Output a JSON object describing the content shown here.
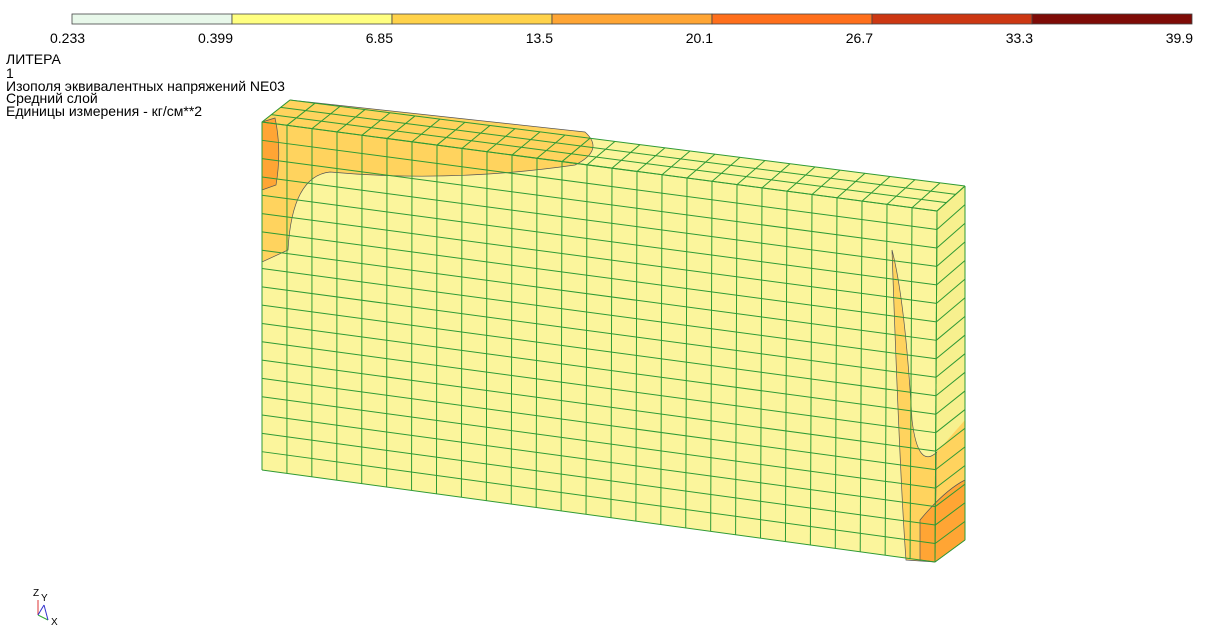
{
  "legend": {
    "colors": [
      "#e8f8ea",
      "#ffff80",
      "#ffd24a",
      "#ffa534",
      "#ff6f1c",
      "#cc3712",
      "#7e0b07"
    ],
    "labels": [
      "0.233",
      "0.399",
      "6.85",
      "13.5",
      "20.1",
      "26.7",
      "33.3",
      "39.9"
    ]
  },
  "info": [
    "ЛИТЕРА",
    "1",
    "Изополя эквивалентных напряжений NE03",
    "Средний слой",
    "Единицы измерения - кг/см**2"
  ],
  "axes_icon": {
    "z": "Z",
    "y": "Y",
    "x": "X"
  }
}
